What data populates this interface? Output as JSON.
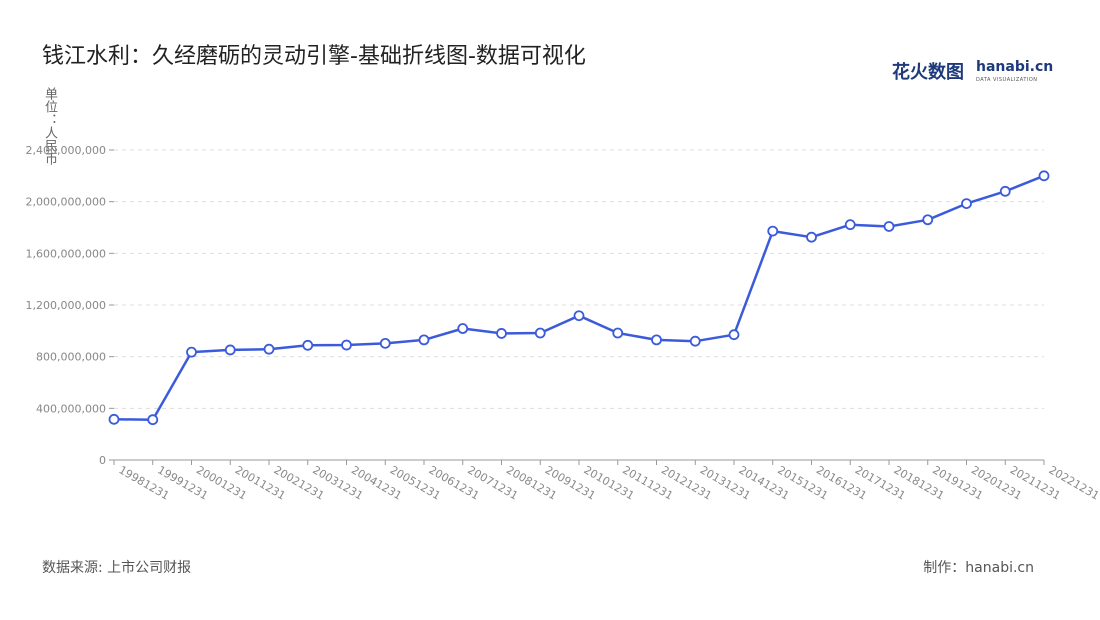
{
  "title": "钱江水利：久经磨砺的灵动引擎-基础折线图-数据可视化",
  "logo": {
    "cn": "花火数图",
    "en": "hanabi.cn",
    "sub": "DATA VISUALIZATION"
  },
  "footer": {
    "source": "数据来源: 上市公司财报",
    "credit": "制作：hanabi.cn"
  },
  "colors": {
    "line": "#3b5bdb",
    "grid": "#dddddd",
    "axis": "#999999"
  },
  "chart_data": {
    "type": "line",
    "title": "钱江水利：久经磨砺的灵动引擎-基础折线图-数据可视化",
    "ylabel": "单位：人民币",
    "xlabel": "",
    "ylim": [
      0,
      2400000000
    ],
    "yticks": [
      0,
      400000000,
      800000000,
      1200000000,
      1600000000,
      2000000000,
      2400000000
    ],
    "ytick_labels": [
      "0",
      "400,000,000",
      "800,000,000",
      "1,200,000,000",
      "1,600,000,000",
      "2,000,000,000",
      "2,400,000,000"
    ],
    "grid": true,
    "categories": [
      "19981231",
      "19991231",
      "20001231",
      "20011231",
      "20021231",
      "20031231",
      "20041231",
      "20051231",
      "20061231",
      "20071231",
      "20081231",
      "20091231",
      "20101231",
      "20111231",
      "20121231",
      "20131231",
      "20141231",
      "20151231",
      "20161231",
      "20171231",
      "20181231",
      "20191231",
      "20201231",
      "20211231",
      "20221231"
    ],
    "values": [
      315000000,
      312000000,
      835000000,
      852000000,
      858000000,
      888000000,
      890000000,
      903000000,
      930000000,
      1018000000,
      980000000,
      983000000,
      1117000000,
      983000000,
      930000000,
      920000000,
      970000000,
      1772000000,
      1725000000,
      1822000000,
      1808000000,
      1860000000,
      1985000000,
      2080000000,
      2200000000
    ]
  }
}
